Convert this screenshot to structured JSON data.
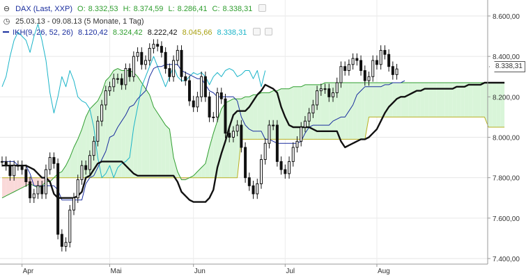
{
  "header": {
    "title": "DAX (Last, XXP)",
    "ohlc": [
      {
        "label": "O:",
        "value": "8.332,53"
      },
      {
        "label": "H:",
        "value": "8.374,59"
      },
      {
        "label": "L:",
        "value": "8.286,41"
      },
      {
        "label": "C:",
        "value": "8.338,31"
      }
    ],
    "range": "25.03.13 - 09.08.13 (5 Monate, 1 Tag)",
    "indicator_name": "IKH(9, 26, 52, 26)",
    "indicator_values": [
      "8.120,42",
      "8.324,42",
      "8.222,42",
      "8.045,66",
      "8.338,31"
    ],
    "last_price": "8.338,31"
  },
  "colors": {
    "tenkan": "#1a2e9e",
    "kijun": "#111111",
    "senkou_a": "#2f9e2f",
    "senkou_b": "#b8b020",
    "chikou": "#1ab4c8",
    "cloud_bull": "#d9f5d9",
    "cloud_bear": "#fad9d9",
    "title": "#1a2e9e",
    "ohlc_value": "#2f9e2f"
  },
  "chart_data": {
    "type": "candlestick",
    "title": "DAX (Last, XXP)",
    "x_ticks": [
      {
        "i": 5,
        "label": "Apr"
      },
      {
        "i": 27,
        "label": "Mai"
      },
      {
        "i": 48,
        "label": "Jun"
      },
      {
        "i": 71,
        "label": "Jul"
      },
      {
        "i": 94,
        "label": "Aug"
      }
    ],
    "y_ticks": [
      {
        "v": 8600,
        "label": "8.600,00"
      },
      {
        "v": 8400,
        "label": "8.400,00"
      },
      {
        "v": 8200,
        "label": "8.200,00"
      },
      {
        "v": 8000,
        "label": "8.000,00"
      },
      {
        "v": 7800,
        "label": "7.800,00"
      },
      {
        "v": 7600,
        "label": "7.600,00"
      },
      {
        "v": 7400,
        "label": "7.400,00"
      }
    ],
    "ylim": [
      7380,
      8650
    ],
    "x_count": 127,
    "close": [
      7880,
      7860,
      7810,
      7860,
      7860,
      7840,
      7780,
      7700,
      7720,
      7760,
      7720,
      7840,
      7900,
      7870,
      7520,
      7460,
      7480,
      7640,
      7700,
      7790,
      7860,
      7840,
      7910,
      7980,
      8080,
      8160,
      8230,
      8250,
      8290,
      8290,
      8260,
      8340,
      8300,
      8400,
      8420,
      8360,
      8380,
      8440,
      8460,
      8450,
      8420,
      8340,
      8300,
      8380,
      8430,
      8300,
      8280,
      8180,
      8150,
      8200,
      8300,
      8200,
      8100,
      8100,
      8220,
      8190,
      8020,
      8000,
      8030,
      8060,
      7950,
      7800,
      7760,
      7720,
      7770,
      7890,
      7970,
      8060,
      8060,
      7880,
      7840,
      7820,
      7880,
      7950,
      7980,
      8050,
      8080,
      8120,
      8160,
      8230,
      8240,
      8240,
      8200,
      8220,
      8270,
      8350,
      8330,
      8360,
      8390,
      8380,
      8330,
      8280,
      8300,
      8380,
      8360,
      8430,
      8410,
      8350,
      8310,
      8338
    ],
    "tenkan": [
      7880,
      7880,
      7880,
      7880,
      7860,
      7860,
      7860,
      7820,
      7760,
      7760,
      7760,
      7760,
      7760,
      7760,
      7740,
      7690,
      7690,
      7690,
      7690,
      7690,
      7690,
      7770,
      7800,
      7810,
      7850,
      7890,
      7930,
      8000,
      8010,
      8050,
      8080,
      8110,
      8150,
      8160,
      8190,
      8210,
      8230,
      8300,
      8340,
      8350,
      8350,
      8360,
      8360,
      8360,
      8360,
      8330,
      8320,
      8310,
      8300,
      8290,
      8290,
      8260,
      8230,
      8220,
      8200,
      8200,
      8200,
      8200,
      8200,
      8180,
      8100,
      8060,
      8040,
      8030,
      8030,
      8030,
      7990,
      7990,
      7980,
      7970,
      7970,
      7970,
      7970,
      7970,
      7970,
      7980,
      8020,
      8050,
      8060,
      8060,
      8060,
      8060,
      8060,
      8080,
      8090,
      8100,
      8100,
      8130,
      8160,
      8210,
      8230,
      8250,
      8250,
      8250,
      8250,
      8250,
      8260,
      8260,
      8270,
      8270,
      8270,
      8280
    ],
    "kijun": [
      7860,
      7860,
      7860,
      7860,
      7860,
      7860,
      7860,
      7850,
      7840,
      7820,
      7800,
      7800,
      7780,
      7720,
      7700,
      7700,
      7700,
      7700,
      7700,
      7710,
      7730,
      7800,
      7810,
      7840,
      7870,
      7880,
      7880,
      7880,
      7880,
      7880,
      7880,
      7860,
      7840,
      7820,
      7810,
      7810,
      7810,
      7810,
      7810,
      7810,
      7810,
      7810,
      7810,
      7810,
      7780,
      7730,
      7710,
      7690,
      7680,
      7680,
      7680,
      7680,
      7700,
      7740,
      7850,
      7920,
      7980,
      8050,
      8110,
      8130,
      8130,
      8130,
      8150,
      8180,
      8210,
      8230,
      8260,
      8250,
      8240,
      8220,
      8150,
      8100,
      8060,
      8050,
      8050,
      8050,
      8050,
      8050,
      8040,
      8030,
      8030,
      8030,
      8030,
      8030,
      8030,
      7980,
      7950,
      7960,
      7970,
      7980,
      7990,
      7990,
      8000,
      8020,
      8040,
      8080,
      8120,
      8150,
      8170,
      8190,
      8200,
      8200,
      8210,
      8220,
      8230,
      8230,
      8240,
      8240,
      8240,
      8240,
      8240,
      8240,
      8240,
      8240,
      8250,
      8250,
      8250,
      8260,
      8260,
      8260,
      8260,
      8270,
      8270,
      8270,
      8270,
      8270,
      8270
    ],
    "senkou_a": [
      7700,
      7710,
      7720,
      7730,
      7740,
      7750,
      7760,
      7770,
      7760,
      7750,
      7760,
      7780,
      7780,
      7800,
      7820,
      7830,
      7860,
      7900,
      7950,
      7990,
      8040,
      8100,
      8140,
      8160,
      8180,
      8220,
      8280,
      8300,
      8330,
      8340,
      8330,
      8330,
      8330,
      8320,
      8300,
      8270,
      8240,
      8210,
      8150,
      8120,
      8090,
      8060,
      8040,
      7900,
      7830,
      7790,
      7790,
      7800,
      7810,
      7830,
      7850,
      7870,
      7950,
      8020,
      8080,
      8140,
      8170,
      8180,
      8190,
      8190,
      8190,
      8200,
      8200,
      8210,
      8210,
      8220,
      8220,
      8220,
      8230,
      8230,
      8240,
      8240,
      8240,
      8250,
      8250,
      8250,
      8260,
      8260,
      8260,
      8260,
      8260,
      8270,
      8270,
      8270,
      8270,
      8270,
      8270,
      8270,
      8270,
      8270,
      8270,
      8270,
      8270,
      8270,
      8270,
      8270,
      8270,
      8270,
      8270,
      8270,
      8270,
      8270,
      8270,
      8270,
      8270,
      8270,
      8270,
      8270,
      8270,
      8270,
      8270,
      8270,
      8270,
      8270,
      8270,
      8270,
      8270,
      8270,
      8270,
      8270,
      8270,
      8270,
      8270,
      8270,
      8270,
      8270,
      8270
    ],
    "senkou_b": [
      7800,
      7800,
      7800,
      7800,
      7800,
      7800,
      7800,
      7800,
      7800,
      7800,
      7800,
      7800,
      7800,
      7800,
      7800,
      7800,
      7800,
      7800,
      7800,
      7800,
      7800,
      7800,
      7800,
      7800,
      7800,
      7800,
      7800,
      7800,
      7800,
      7800,
      7800,
      7800,
      7800,
      7800,
      7800,
      7800,
      7800,
      7800,
      7800,
      7800,
      7800,
      7800,
      7800,
      7800,
      7800,
      7800,
      7800,
      7800,
      7800,
      7800,
      7800,
      7800,
      7800,
      7800,
      7800,
      7800,
      7800,
      7800,
      7800,
      7800,
      7990,
      7990,
      7990,
      7990,
      7990,
      7990,
      7990,
      7990,
      7990,
      7990,
      7990,
      7990,
      7990,
      7990,
      7990,
      7990,
      7990,
      7990,
      7990,
      7990,
      7990,
      7990,
      7990,
      7990,
      7990,
      7990,
      7990,
      7990,
      7990,
      7990,
      7990,
      7990,
      8100,
      8100,
      8100,
      8100,
      8100,
      8100,
      8100,
      8100,
      8100,
      8100,
      8100,
      8100,
      8100,
      8100,
      8100,
      8100,
      8100,
      8100,
      8100,
      8100,
      8100,
      8100,
      8100,
      8100,
      8100,
      8100,
      8100,
      8100,
      8100,
      8100,
      8050,
      8050,
      8050,
      8050,
      8050
    ],
    "chikou": [
      8250,
      8300,
      8400,
      8480,
      8520,
      8500,
      8480,
      8420,
      8500,
      8560,
      8480,
      8380,
      8220,
      8120,
      8200,
      8300,
      8250,
      8330,
      8280,
      8200,
      8180,
      8170,
      8140,
      8050,
      7900,
      7800,
      7820,
      7860,
      7800,
      7850,
      7870,
      7880,
      7900,
      8050,
      8150,
      8250,
      8300,
      8350,
      8400,
      8350,
      8300,
      8250,
      8300,
      8350,
      8300,
      8280,
      8280,
      8300,
      8320,
      8310,
      8320,
      8300,
      8260,
      8300,
      8320,
      8300,
      8330,
      8340,
      8330,
      8300,
      8310,
      8330,
      8330,
      8290,
      8330,
      8250,
      8330
    ]
  }
}
